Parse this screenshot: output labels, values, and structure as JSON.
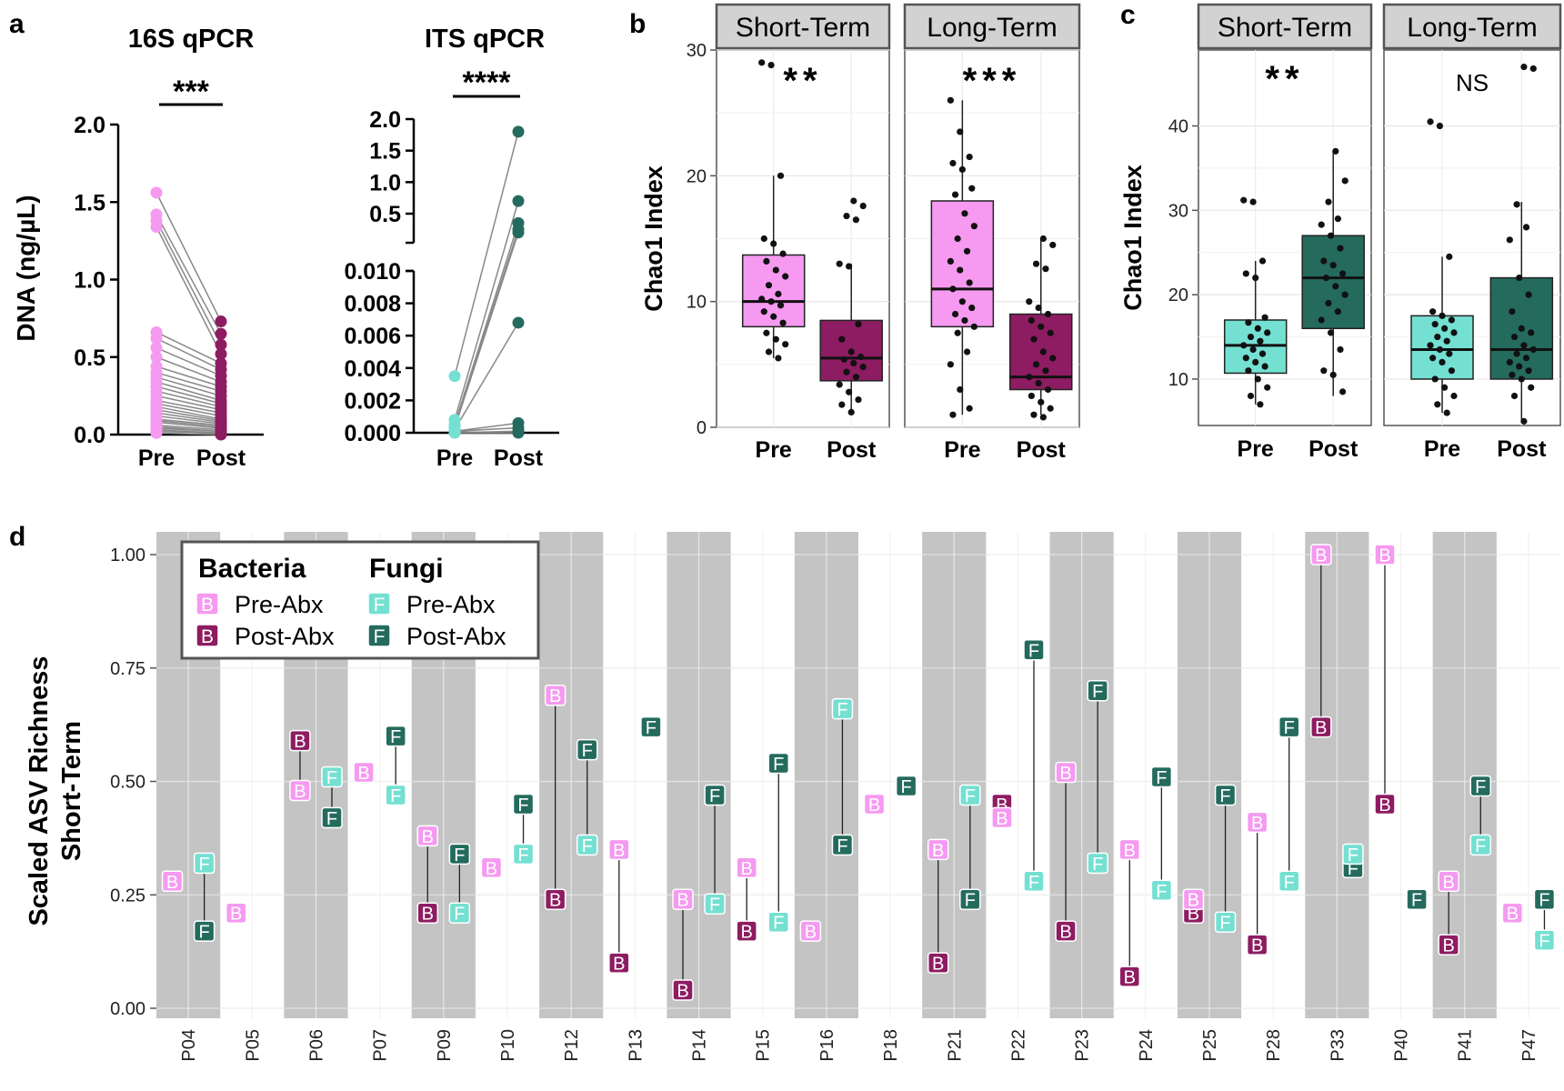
{
  "colors": {
    "pre_bacteria": "#f59af0",
    "post_bacteria": "#8e1c62",
    "pre_fungi": "#74e0d2",
    "post_fungi": "#246b5e",
    "line": "#888888",
    "strip_fill": "#d2d2d2",
    "band": "#c4c4c4"
  },
  "panel_labels": {
    "a": "a",
    "b": "b",
    "c": "c",
    "d": "d"
  },
  "chart_data": [
    {
      "id": "a1",
      "type": "scatter",
      "title": "16S qPCR",
      "significance": "***",
      "ylabel": "DNA (ng/µL)",
      "categories": [
        "Pre",
        "Post"
      ],
      "ylim": [
        0,
        2.0
      ],
      "yticks": [
        "0.0",
        "0.5",
        "1.0",
        "1.5",
        "2.0"
      ],
      "pairs": [
        [
          1.56,
          0.73
        ],
        [
          1.42,
          0.65
        ],
        [
          1.38,
          0.58
        ],
        [
          1.34,
          0.52
        ],
        [
          0.66,
          0.46
        ],
        [
          0.62,
          0.42
        ],
        [
          0.56,
          0.38
        ],
        [
          0.5,
          0.34
        ],
        [
          0.44,
          0.31
        ],
        [
          0.4,
          0.28
        ],
        [
          0.37,
          0.25
        ],
        [
          0.34,
          0.22
        ],
        [
          0.31,
          0.2
        ],
        [
          0.28,
          0.18
        ],
        [
          0.25,
          0.16
        ],
        [
          0.22,
          0.14
        ],
        [
          0.2,
          0.12
        ],
        [
          0.18,
          0.1
        ],
        [
          0.16,
          0.09
        ],
        [
          0.14,
          0.08
        ],
        [
          0.12,
          0.07
        ],
        [
          0.1,
          0.06
        ],
        [
          0.09,
          0.05
        ],
        [
          0.08,
          0.04
        ],
        [
          0.06,
          0.03
        ],
        [
          0.05,
          0.02
        ],
        [
          0.04,
          0.02
        ],
        [
          0.03,
          0.01
        ],
        [
          0.02,
          0.01
        ],
        [
          0.01,
          0.0
        ]
      ]
    },
    {
      "id": "a2",
      "type": "scatter",
      "title": "ITS qPCR",
      "significance": "****",
      "categories": [
        "Pre",
        "Post"
      ],
      "y_upper_ticks": [
        "0.5",
        "1.0",
        "1.5",
        "2.0"
      ],
      "y_lower_ticks": [
        "0.000",
        "0.002",
        "0.004",
        "0.006",
        "0.008",
        "0.010"
      ],
      "y_break": "0.010 to 0.5",
      "pairs": [
        [
          0.0035,
          1.8
        ],
        [
          0.0008,
          0.7
        ],
        [
          0.0005,
          0.35
        ],
        [
          0.0004,
          0.25
        ],
        [
          0.0003,
          0.2
        ],
        [
          0.0002,
          0.0068
        ],
        [
          0.0001,
          0.0006
        ],
        [
          0.0001,
          0.0003
        ],
        [
          0.0,
          0.0001
        ],
        [
          0.0,
          0.0
        ]
      ]
    },
    {
      "id": "b",
      "type": "box",
      "ylabel": "Chao1 Index",
      "ylim": [
        0,
        30
      ],
      "yticks": [
        "0",
        "10",
        "20",
        "30"
      ],
      "panels": [
        {
          "strip": "Short-Term",
          "significance": "**",
          "categories": [
            "Pre",
            "Post"
          ],
          "boxes": [
            {
              "q1": 8,
              "median": 10,
              "q3": 13.7,
              "lo": 5.5,
              "hi": 20
            },
            {
              "q1": 3.7,
              "median": 5.5,
              "q3": 8.5,
              "lo": 1.2,
              "hi": 13
            }
          ],
          "points": [
            [
              29,
              28.8,
              20,
              15,
              14.6,
              13.8,
              13.2,
              12.5,
              12,
              11.3,
              10.6,
              10.2,
              10,
              9.7,
              9.2,
              8.8,
              8.3,
              7.5,
              7,
              6.6,
              6,
              5.5
            ],
            [
              18,
              17.6,
              16.8,
              16.5,
              13,
              12.8,
              8.2,
              7,
              6,
              5.6,
              5.4,
              5.1,
              4.8,
              4.4,
              4,
              3.4,
              2.8,
              2.2,
              1.8,
              1.2
            ]
          ]
        },
        {
          "strip": "Long-Term",
          "significance": "***",
          "categories": [
            "Pre",
            "Post"
          ],
          "boxes": [
            {
              "q1": 8,
              "median": 11,
              "q3": 18,
              "lo": 1,
              "hi": 26
            },
            {
              "q1": 3,
              "median": 4,
              "q3": 9,
              "lo": 1,
              "hi": 15
            }
          ],
          "points": [
            [
              26,
              23.5,
              21.5,
              21,
              20.5,
              19,
              18.5,
              17,
              16,
              15,
              14,
              13.2,
              12.5,
              11.5,
              11,
              10,
              9.5,
              9,
              8.5,
              8,
              7.5,
              6,
              5,
              3,
              1.5,
              1
            ],
            [
              15,
              14.5,
              13,
              12.6,
              10,
              9.5,
              9,
              8.5,
              8,
              7.5,
              7,
              6,
              5.5,
              5,
              4.5,
              4,
              3.5,
              3,
              2.5,
              2,
              1.5,
              1,
              0.8
            ]
          ]
        }
      ]
    },
    {
      "id": "c",
      "type": "box",
      "ylabel": "Chao1 Index",
      "ylim": [
        4.5,
        49
      ],
      "yticks": [
        "10",
        "20",
        "30",
        "40"
      ],
      "panels": [
        {
          "strip": "Short-Term",
          "significance": "**",
          "categories": [
            "Pre",
            "Post"
          ],
          "boxes": [
            {
              "q1": 10.7,
              "median": 14,
              "q3": 17,
              "lo": 7,
              "hi": 24
            },
            {
              "q1": 16,
              "median": 22,
              "q3": 27,
              "lo": 8,
              "hi": 37
            }
          ],
          "points": [
            [
              31.2,
              31,
              24,
              22.5,
              22,
              17.3,
              16.7,
              16,
              15.5,
              15,
              14.5,
              14,
              13.5,
              13,
              12.5,
              12,
              11.5,
              11,
              10,
              9,
              8,
              7
            ],
            [
              37,
              33.5,
              31,
              29,
              28.3,
              27,
              25.5,
              24,
              23.5,
              22.5,
              22,
              21,
              20,
              19,
              18,
              17,
              15.5,
              13.5,
              11,
              10.5,
              8.5
            ]
          ]
        },
        {
          "strip": "Long-Term",
          "significance": "NS",
          "categories": [
            "Pre",
            "Post"
          ],
          "boxes": [
            {
              "q1": 10,
              "median": 13.5,
              "q3": 17.5,
              "lo": 6,
              "hi": 24.5
            },
            {
              "q1": 10,
              "median": 13.5,
              "q3": 22,
              "lo": 5,
              "hi": 31
            }
          ],
          "points": [
            [
              40.5,
              40,
              24.5,
              18,
              17.5,
              17,
              16.5,
              16,
              15.5,
              15,
              14.5,
              14,
              13.5,
              13,
              12.5,
              12,
              11,
              10,
              9,
              8,
              7,
              6
            ],
            [
              47,
              46.8,
              30.7,
              28,
              26.5,
              22,
              20,
              18,
              16,
              15.5,
              15,
              14,
              13.5,
              13,
              12.5,
              12,
              11.5,
              11,
              10.5,
              10,
              9,
              8,
              5
            ]
          ]
        }
      ]
    },
    {
      "id": "d",
      "type": "dumbbell",
      "ylabel": "Scaled ASV Richness Short-Term",
      "ylim": [
        0,
        1.0
      ],
      "yticks": [
        "0.00",
        "0.25",
        "0.50",
        "0.75",
        "1.00"
      ],
      "legend": {
        "bacteria_title": "Bacteria",
        "fungi_title": "Fungi",
        "pre_label": "Pre-Abx",
        "post_label": "Post-Abx",
        "b_letter": "B",
        "f_letter": "F"
      },
      "categories": [
        "P04",
        "P05",
        "P06",
        "P07",
        "P09",
        "P10",
        "P12",
        "P13",
        "P14",
        "P15",
        "P16",
        "P18",
        "P21",
        "P22",
        "P23",
        "P24",
        "P25",
        "P28",
        "P33",
        "P40",
        "P41",
        "P47"
      ],
      "shaded": [
        true,
        false,
        true,
        false,
        true,
        false,
        true,
        false,
        true,
        false,
        true,
        false,
        true,
        false,
        true,
        false,
        true,
        false,
        true,
        false,
        true,
        false
      ],
      "series": [
        {
          "name": "Bacteria",
          "pre": [
            0.28,
            0.21,
            0.48,
            0.52,
            0.38,
            0.31,
            0.69,
            0.35,
            0.24,
            0.31,
            0.17,
            0.45,
            0.35,
            0.42,
            0.52,
            0.35,
            0.24,
            0.41,
            1.0,
            1.0,
            0.28,
            0.21
          ],
          "post": [
            null,
            null,
            0.59,
            null,
            0.21,
            null,
            0.24,
            0.1,
            0.04,
            0.17,
            null,
            null,
            0.1,
            0.45,
            0.17,
            0.07,
            0.21,
            0.14,
            0.62,
            0.45,
            0.14,
            null
          ]
        },
        {
          "name": "Fungi",
          "pre": [
            0.32,
            null,
            0.51,
            0.47,
            0.21,
            0.34,
            0.36,
            null,
            0.23,
            0.19,
            0.66,
            null,
            0.47,
            0.28,
            0.32,
            0.26,
            0.19,
            0.28,
            0.34,
            null,
            0.36,
            0.15
          ],
          "post": [
            0.17,
            null,
            0.42,
            0.6,
            0.34,
            0.45,
            0.57,
            0.62,
            0.47,
            0.54,
            0.36,
            0.49,
            0.24,
            0.79,
            0.7,
            0.51,
            0.47,
            0.62,
            0.31,
            0.24,
            0.49,
            0.24
          ]
        }
      ]
    }
  ]
}
